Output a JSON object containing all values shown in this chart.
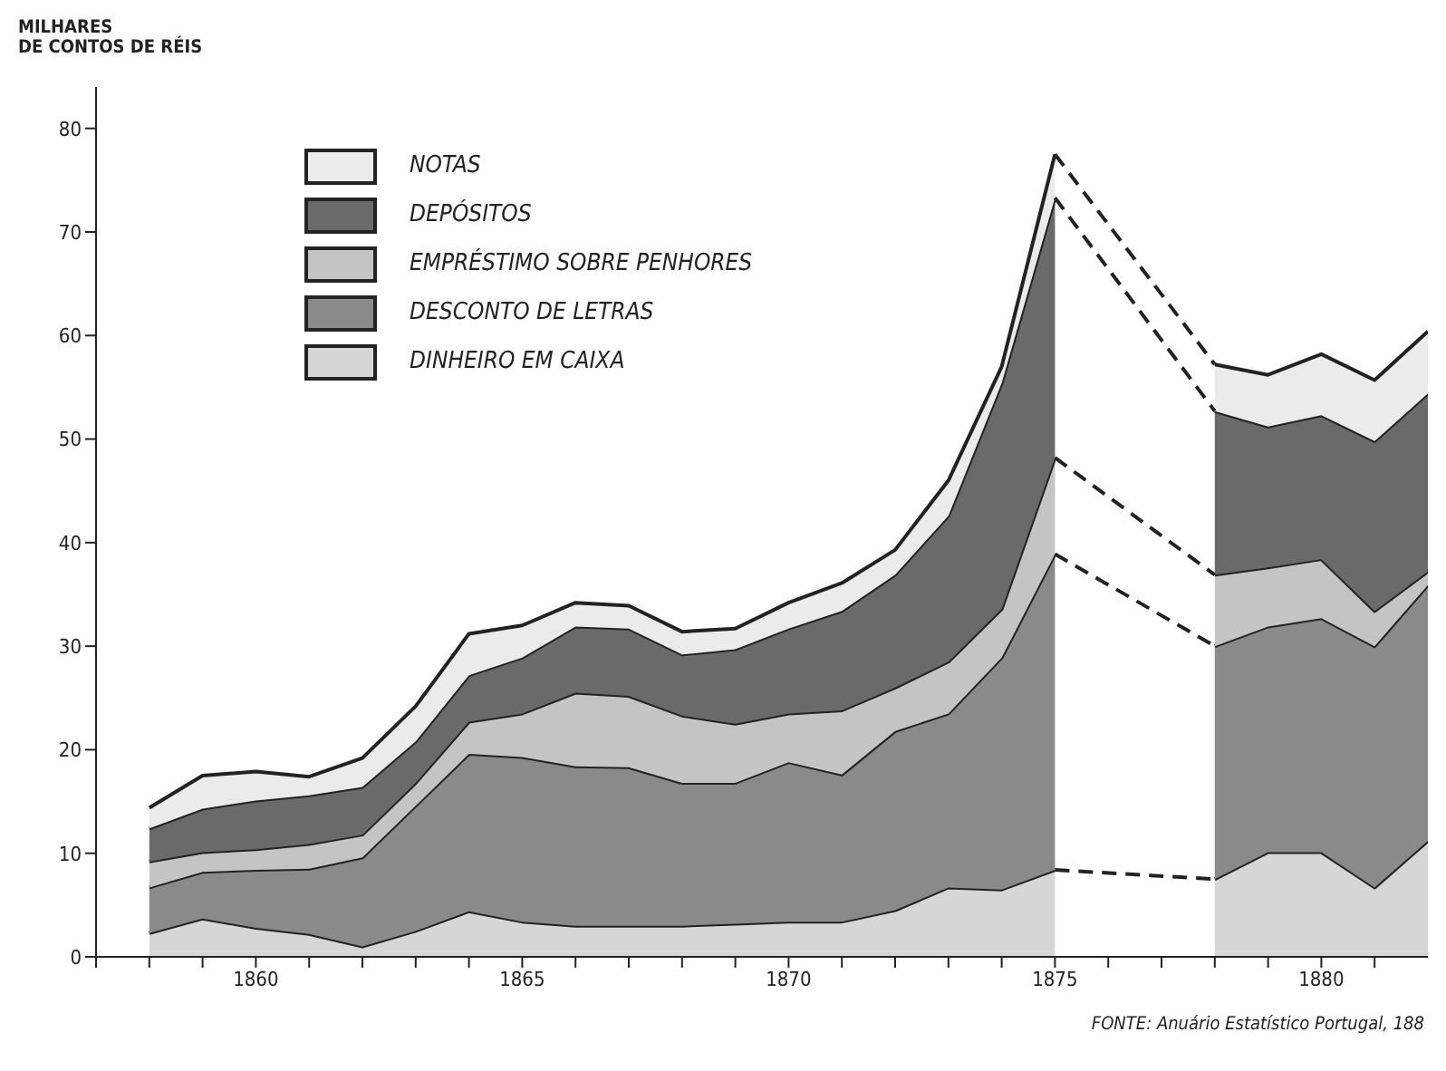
{
  "chart_data": {
    "type": "area",
    "stacked": true,
    "ylabel": "MILHARES\nDE CONTOS DE RÉIS",
    "annotations": [
      "FONTE: Anuário Estatístico Portugal, 188"
    ],
    "x": [
      1858,
      1859,
      1860,
      1861,
      1862,
      1863,
      1864,
      1865,
      1866,
      1867,
      1868,
      1869,
      1870,
      1871,
      1872,
      1873,
      1874,
      1875,
      1876,
      1877,
      1878,
      1879,
      1880,
      1881,
      1882
    ],
    "xlim": [
      1857,
      1882
    ],
    "xticks": [
      {
        "value": 1857,
        "label": null
      },
      {
        "value": 1858,
        "label": null
      },
      {
        "value": 1859,
        "label": null
      },
      1860,
      {
        "value": 1861,
        "label": null
      },
      {
        "value": 1862,
        "label": null
      },
      {
        "value": 1863,
        "label": null
      },
      {
        "value": 1864,
        "label": null
      },
      1865,
      {
        "value": 1866,
        "label": null
      },
      {
        "value": 1867,
        "label": null
      },
      {
        "value": 1868,
        "label": null
      },
      {
        "value": 1869,
        "label": null
      },
      1870,
      {
        "value": 1871,
        "label": null
      },
      {
        "value": 1872,
        "label": null
      },
      {
        "value": 1873,
        "label": null
      },
      {
        "value": 1874,
        "label": null
      },
      1875,
      {
        "value": 1876,
        "label": null
      },
      {
        "value": 1877,
        "label": null
      },
      {
        "value": 1878,
        "label": null
      },
      {
        "value": 1879,
        "label": null
      },
      1880,
      {
        "value": 1881,
        "label": null
      }
    ],
    "ylim": [
      0,
      84
    ],
    "yticks": [
      0,
      10,
      20,
      30,
      40,
      50,
      60,
      70,
      80
    ],
    "legend": "top left",
    "line_style": "solid",
    "grid": false,
    "series": [
      {
        "name": "DINHEIRO EM CAIXA",
        "color": "#d6d6d6",
        "values": [
          2.3,
          3.7,
          2.8,
          2.2,
          1.0,
          2.5,
          4.4,
          3.4,
          3.0,
          3.0,
          3.0,
          3.2,
          3.4,
          3.4,
          4.5,
          6.7,
          6.5,
          8.4,
          null,
          null,
          7.5,
          10.1,
          10.1,
          6.7,
          11.2
        ]
      },
      {
        "name": "DESCONTO DE LETRAS",
        "color": "#8a8a8a",
        "values": [
          4.4,
          4.5,
          5.6,
          6.3,
          8.6,
          12.1,
          15.2,
          15.9,
          15.4,
          15.3,
          13.8,
          13.6,
          15.4,
          14.2,
          17.3,
          16.8,
          22.4,
          30.5,
          null,
          null,
          22.5,
          21.8,
          22.6,
          23.3,
          24.7
        ]
      },
      {
        "name": "EMPRÉSTIMO SOBRE PENHORES",
        "color": "#c4c4c4",
        "values": [
          2.5,
          1.9,
          2.0,
          2.4,
          2.2,
          2.2,
          3.1,
          4.2,
          7.1,
          6.9,
          6.5,
          5.7,
          4.7,
          6.2,
          4.2,
          5.0,
          4.7,
          9.3,
          null,
          null,
          6.9,
          5.7,
          5.7,
          3.4,
          1.3
        ]
      },
      {
        "name": "DEPÓSITOS",
        "color": "#6a6a6a",
        "values": [
          3.2,
          4.2,
          4.7,
          4.7,
          4.6,
          4.0,
          4.5,
          5.4,
          6.4,
          6.5,
          5.9,
          7.2,
          8.2,
          9.6,
          10.9,
          14.1,
          21.8,
          25.1,
          null,
          null,
          15.8,
          13.6,
          13.9,
          16.4,
          17.2
        ]
      },
      {
        "name": "NOTAS",
        "color": "#ebebeb",
        "values": [
          2.0,
          3.2,
          2.8,
          1.8,
          2.8,
          3.4,
          4.0,
          3.1,
          2.3,
          2.2,
          2.2,
          2.0,
          2.5,
          2.7,
          2.4,
          3.4,
          1.6,
          4.2,
          null,
          null,
          4.5,
          5.0,
          5.9,
          5.9,
          6.0
        ]
      }
    ]
  }
}
